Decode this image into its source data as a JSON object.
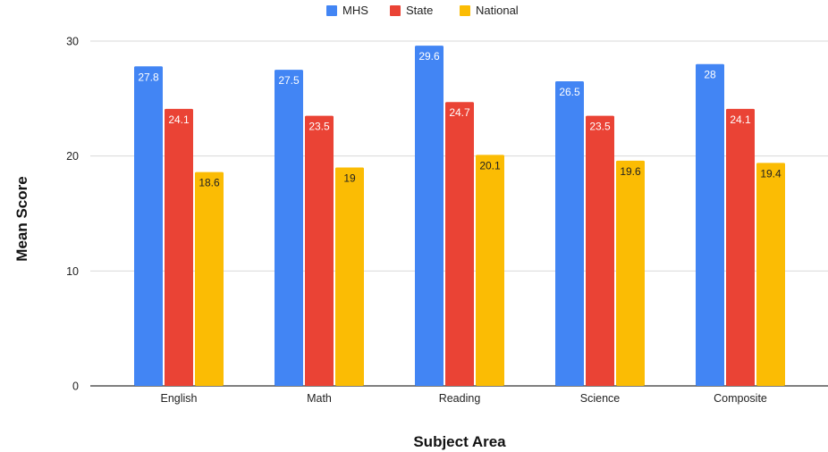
{
  "chart_data": {
    "type": "bar",
    "title": "",
    "xlabel": "Subject Area",
    "ylabel": "Mean Score",
    "categories": [
      "English",
      "Math",
      "Reading",
      "Science",
      "Composite"
    ],
    "series": [
      {
        "name": "MHS",
        "color": "#4285F4",
        "label_color": "#ffffff",
        "values": [
          27.8,
          27.5,
          29.6,
          26.5,
          28
        ]
      },
      {
        "name": "State",
        "color": "#EA4335",
        "label_color": "#ffffff",
        "values": [
          24.1,
          23.5,
          24.7,
          23.5,
          24.1
        ]
      },
      {
        "name": "National",
        "color": "#FBBC04",
        "label_color": "#222222",
        "values": [
          18.6,
          19,
          20.1,
          19.6,
          19.4
        ]
      }
    ],
    "ylim": [
      0,
      30
    ],
    "yticks": [
      0,
      10,
      20,
      30
    ],
    "grid": true,
    "legend_position": "top-center"
  }
}
